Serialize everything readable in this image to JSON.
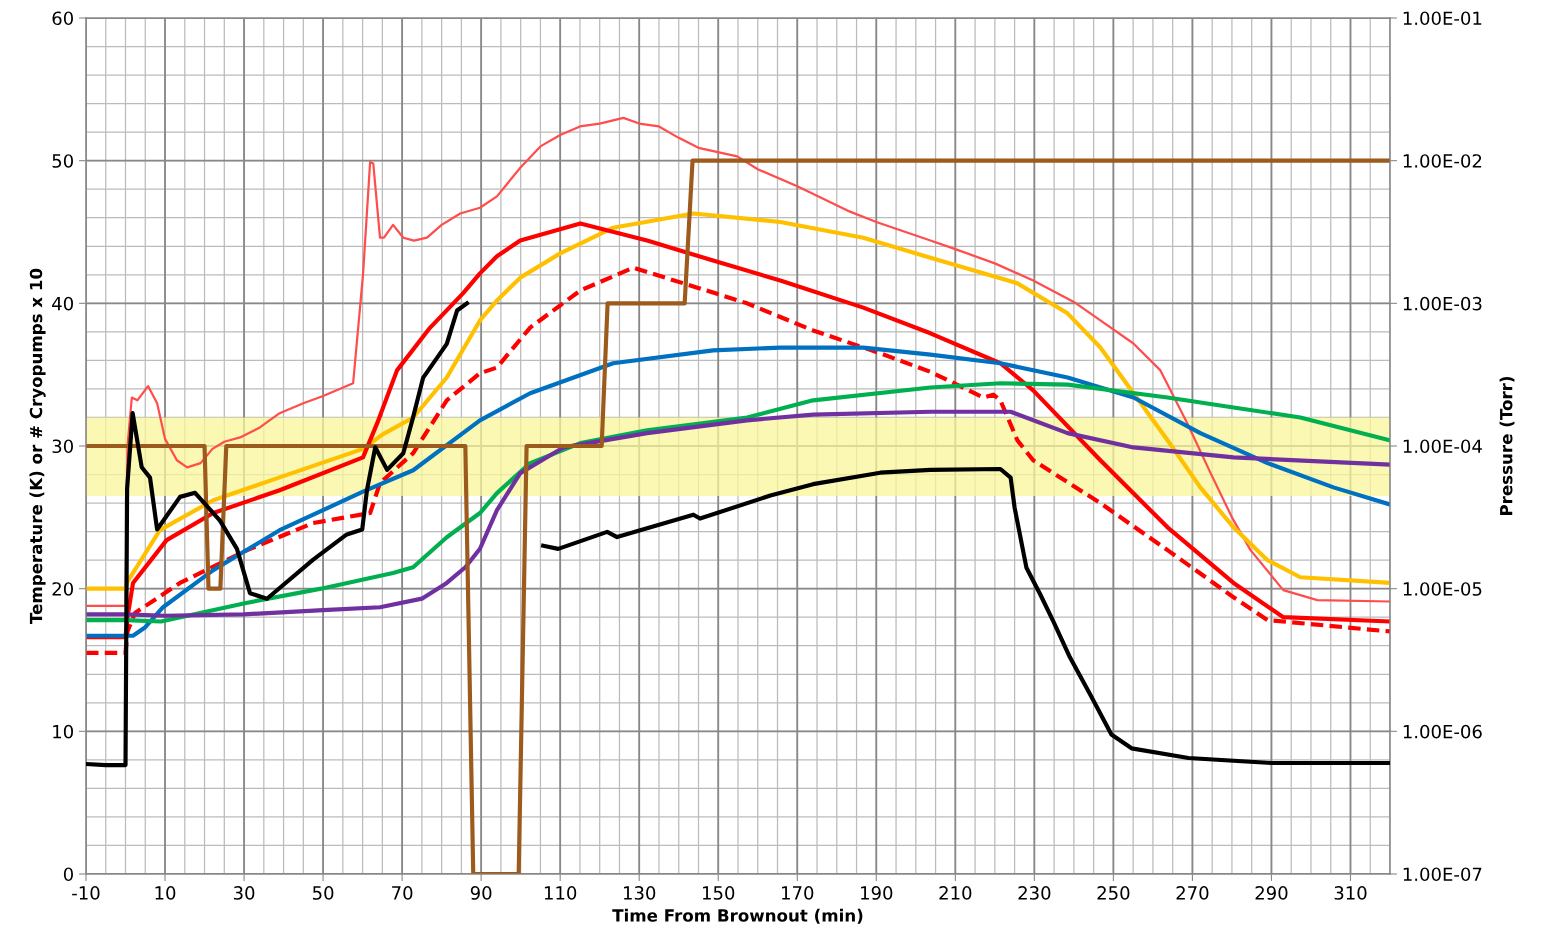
{
  "chart_data": {
    "type": "line",
    "xlabel": "Time From Brownout (min)",
    "ylabel": "Temperature (K) or # Cryopumps x 10",
    "y2label": "Pressure (Torr)",
    "xlim": [
      -10,
      320
    ],
    "xticks": [
      -10,
      10,
      30,
      50,
      70,
      90,
      110,
      130,
      150,
      170,
      190,
      210,
      230,
      250,
      270,
      290,
      310
    ],
    "ylim": [
      0,
      60
    ],
    "yticks": [
      0,
      10,
      20,
      30,
      40,
      50,
      60
    ],
    "y2lim": [
      1e-07,
      0.1
    ],
    "log": "y2",
    "y2ticks": [
      {
        "value": 1e-07,
        "label": "1.00E-07"
      },
      {
        "value": 1e-06,
        "label": "1.00E-06"
      },
      {
        "value": 1e-05,
        "label": "1.00E-05"
      },
      {
        "value": 0.0001,
        "label": "1.00E-04"
      },
      {
        "value": 0.001,
        "label": "1.00E-03"
      },
      {
        "value": 0.01,
        "label": "1.00E-02"
      },
      {
        "value": 0.1,
        "label": "1.00E-01"
      }
    ],
    "grid": true,
    "marker": "none",
    "bands": [
      {
        "axis": "y",
        "from": 26.5,
        "to": 32,
        "color": "#f8f59a"
      }
    ],
    "series": [
      {
        "color": "#ff4d4d",
        "x": [
          -10,
          0,
          0.5,
          1.6,
          3,
          5.7,
          8,
          10,
          13,
          15.6,
          19,
          22,
          25,
          29,
          34,
          39,
          45,
          50,
          57.6,
          60.1,
          61.9,
          62.7,
          64.4,
          65.4,
          67.7,
          70.3,
          73,
          76.3,
          80,
          84.7,
          89.7,
          94,
          99.9,
          105,
          110,
          115,
          120,
          126,
          130,
          135,
          140,
          145,
          154.8,
          160,
          170,
          182.7,
          190,
          203.7,
          210,
          220,
          229.7,
          240,
          246.7,
          255,
          261.9,
          268.7,
          274.6,
          280,
          284.7,
          293,
          301.6,
          320
        ],
        "values": [
          18.8,
          18.8,
          30,
          33.4,
          33.2,
          34.2,
          33,
          30.5,
          29,
          28.5,
          28.8,
          29.8,
          30.3,
          30.6,
          31.3,
          32.3,
          33,
          33.5,
          34.4,
          42,
          49.9,
          49.8,
          44.6,
          44.6,
          45.5,
          44.6,
          44.4,
          44.6,
          45.5,
          46.3,
          46.7,
          47.5,
          49.5,
          51,
          51.8,
          52.4,
          52.6,
          53,
          52.6,
          52.4,
          51.6,
          50.9,
          50.3,
          49.4,
          48.2,
          46.5,
          45.7,
          44.4,
          43.8,
          42.8,
          41.6,
          40.1,
          38.8,
          37.2,
          35.3,
          31.6,
          28.1,
          25,
          22.7,
          19.9,
          19.2,
          19.1
        ]
      },
      {
        "color": "#ffc000",
        "x": [
          -10,
          0,
          0.5,
          1.9,
          8.7,
          22.2,
          39,
          60.1,
          65,
          72.8,
          81.3,
          89.7,
          94,
          99.9,
          110,
          123.4,
          143.7,
          165.7,
          186.7,
          203.7,
          225.7,
          238.4,
          246.7,
          255.1,
          263.7,
          272,
          280.4,
          289,
          297.3,
          320
        ],
        "values": [
          20,
          20,
          20.5,
          21.1,
          24.1,
          26.2,
          27.8,
          29.8,
          30.8,
          32,
          34.8,
          38.8,
          40.2,
          41.8,
          43.5,
          45.3,
          46.3,
          45.7,
          44.6,
          43.2,
          41.4,
          39.3,
          36.9,
          33.7,
          30.4,
          27.1,
          24.3,
          22,
          20.8,
          20.4
        ]
      },
      {
        "color": "#ff0000",
        "x": [
          -10,
          0,
          0.5,
          1.9,
          10.4,
          22.2,
          39,
          60.1,
          63.7,
          68.7,
          77.1,
          85.4,
          89.7,
          94,
          99.9,
          115.1,
          132,
          148.7,
          165.7,
          186.7,
          203.7,
          221.4,
          229.7,
          246.7,
          263.7,
          280.4,
          293,
          320
        ],
        "values": [
          16.6,
          16.6,
          18,
          20.4,
          23.4,
          25.3,
          26.9,
          29.2,
          31.6,
          35.3,
          38.3,
          40.7,
          42.1,
          43.3,
          44.4,
          45.6,
          44.4,
          43,
          41.6,
          39.7,
          37.9,
          35.8,
          33.9,
          29,
          24.3,
          20.4,
          18,
          17.7
        ]
      },
      {
        "color": "#ff0000",
        "line_style": "dashed",
        "x": [
          -10,
          0,
          0.5,
          2.4,
          13.8,
          30.8,
          47.5,
          61.9,
          64.4,
          72.8,
          81.3,
          89.7,
          94,
          102.4,
          115.1,
          128.5,
          144.7,
          157.3,
          174,
          191,
          203.7,
          217.1,
          219.6,
          221.4,
          225.7,
          229.7,
          246.7,
          263.7,
          280.4,
          289,
          320
        ],
        "values": [
          15.5,
          15.5,
          17,
          18.3,
          20.4,
          22.7,
          24.6,
          25.3,
          27.4,
          29.5,
          33.2,
          35.1,
          35.5,
          38.3,
          40.9,
          42.5,
          41.1,
          40,
          38.1,
          36.5,
          35.2,
          33.4,
          33.6,
          33.2,
          30.4,
          29,
          26,
          22.7,
          19.4,
          17.8,
          17
        ]
      },
      {
        "color": "#0070c0",
        "x": [
          -10,
          0,
          1.9,
          5,
          9.5,
          22.2,
          39,
          60.1,
          72.8,
          89.7,
          102.4,
          123.4,
          148.7,
          165.7,
          186.7,
          203.7,
          221.4,
          238.4,
          255.1,
          272,
          289,
          305.7,
          320
        ],
        "values": [
          16.7,
          16.7,
          16.7,
          17.3,
          18.7,
          21.3,
          24.1,
          26.8,
          28.3,
          31.8,
          33.7,
          35.8,
          36.7,
          36.9,
          36.9,
          36.4,
          35.8,
          34.8,
          33.4,
          30.9,
          28.8,
          27.1,
          25.9
        ]
      },
      {
        "color": "#00b050",
        "x": [
          -10,
          0,
          9,
          30.5,
          49.5,
          67.7,
          72.8,
          81.3,
          89.7,
          94,
          102.4,
          115.1,
          132,
          157.3,
          174,
          203.7,
          221.4,
          238.4,
          263.7,
          280.4,
          297.3,
          320
        ],
        "values": [
          17.8,
          17.8,
          17.7,
          19,
          20,
          21.1,
          21.5,
          23.6,
          25.3,
          26.7,
          28.8,
          30.2,
          31.1,
          32,
          33.2,
          34.1,
          34.4,
          34.3,
          33.4,
          32.7,
          32,
          30.4
        ]
      },
      {
        "color": "#7030a0",
        "x": [
          -10,
          0,
          10,
          30,
          50,
          64.4,
          75,
          81.3,
          86,
          89.7,
          94,
          99.9,
          110.8,
          132,
          157.3,
          174,
          203.7,
          224,
          238.4,
          255.1,
          280.4,
          320
        ],
        "values": [
          18.2,
          18.2,
          18.1,
          18.2,
          18.5,
          18.7,
          19.3,
          20.4,
          21.5,
          22.8,
          25.5,
          28.1,
          29.9,
          30.9,
          31.8,
          32.2,
          32.4,
          32.4,
          30.9,
          29.9,
          29.2,
          28.7
        ]
      },
      {
        "color": "#000000",
        "axis": "y2",
        "x": [
          -10,
          -5,
          0,
          0.4,
          1.8,
          4.1,
          6.2,
          8,
          13.8,
          17.6,
          23.9,
          28.2,
          31.5,
          35.8,
          47.5,
          56,
          59.9,
          61.1,
          63.2,
          66.2,
          70.3,
          72.8,
          75.3,
          81.3,
          83.9,
          86.4,
          95,
          105.7,
          109.5,
          121.9,
          124.4,
          143.7,
          145.4,
          163.2,
          174,
          191,
          203.7,
          221.4,
          224,
          225,
          228,
          231.5,
          234.8,
          239,
          244.2,
          249.5,
          254.6,
          269,
          290,
          320
        ],
        "values": [
          5.9e-07,
          5.8e-07,
          5.8e-07,
          5e-05,
          0.00017,
          7.1e-05,
          6e-05,
          2.6e-05,
          4.4e-05,
          4.7e-05,
          3e-05,
          1.9e-05,
          9.3e-06,
          8.5e-06,
          1.6e-05,
          2.4e-05,
          2.6e-05,
          4.9e-05,
          9.8e-05,
          6.8e-05,
          8.9e-05,
          0.00016,
          0.0003,
          0.00052,
          0.00089,
          0.001,
          null,
          2e-05,
          1.9e-05,
          2.5e-05,
          2.3e-05,
          3.3e-05,
          3.1e-05,
          4.5e-05,
          5.4e-05,
          6.5e-05,
          6.8e-05,
          6.9e-05,
          6e-05,
          3.7e-05,
          1.4e-05,
          9.1e-06,
          5.9e-06,
          3.3e-06,
          1.8e-06,
          9.5e-07,
          7.6e-07,
          6.5e-07,
          6e-07,
          6e-07
        ]
      },
      {
        "color": "#9c5b1c",
        "x": [
          -10,
          20,
          21,
          24,
          25.5,
          86,
          88,
          99.5,
          101.5,
          120.5,
          122,
          141.5,
          143.5,
          320
        ],
        "values": [
          30,
          30,
          20,
          20,
          30,
          30,
          0,
          0,
          30,
          30,
          40,
          40,
          50,
          50
        ]
      }
    ]
  }
}
